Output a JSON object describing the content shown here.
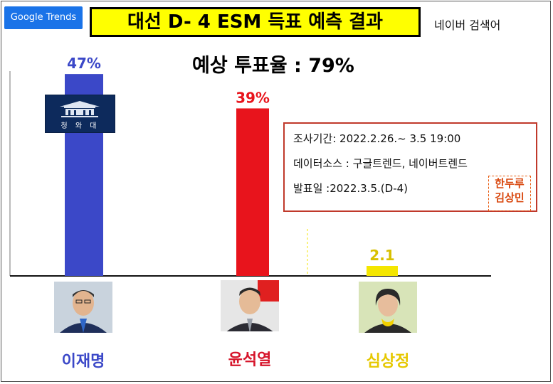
{
  "header": {
    "badge": "Google Trends",
    "title": "대선 D- 4  ESM 득표 예측 결과",
    "source_label": "네이버 검색어",
    "turnout": "예상 투표율 : 79%"
  },
  "chart_data": {
    "type": "bar",
    "categories": [
      "이재명",
      "윤석열",
      "심상정"
    ],
    "values": [
      47,
      39,
      2.1
    ],
    "data_labels": [
      "47%",
      "39%",
      "2.1"
    ],
    "colors": [
      "#3b48c8",
      "#e8141c",
      "#f4e600"
    ],
    "label_colors": [
      "#3b48c8",
      "#e8141c",
      "#d8c000"
    ],
    "ylim": [
      0,
      50
    ],
    "grid": false,
    "title": "대선 D- 4  ESM 득표 예측 결과",
    "xlabel": "",
    "ylabel": ""
  },
  "info_box": {
    "line1": "조사기간: 2022.2.26.~ 3.5 19:00",
    "line2": "데이터소스 : 구글트렌드, 네이버트렌드",
    "line3": "발표일 :2022.3.5.(D-4)"
  },
  "seal": {
    "line1": "한두루",
    "line2": "김상민"
  },
  "emblem": {
    "text": "청 와 대"
  },
  "candidates": [
    {
      "name": "이재명",
      "color": "#3b48c8",
      "photo": "person-photo-icon"
    },
    {
      "name": "윤석열",
      "color": "#d6142a",
      "photo": "person-photo-icon"
    },
    {
      "name": "심상정",
      "color": "#e6c800",
      "photo": "person-photo-icon"
    }
  ]
}
